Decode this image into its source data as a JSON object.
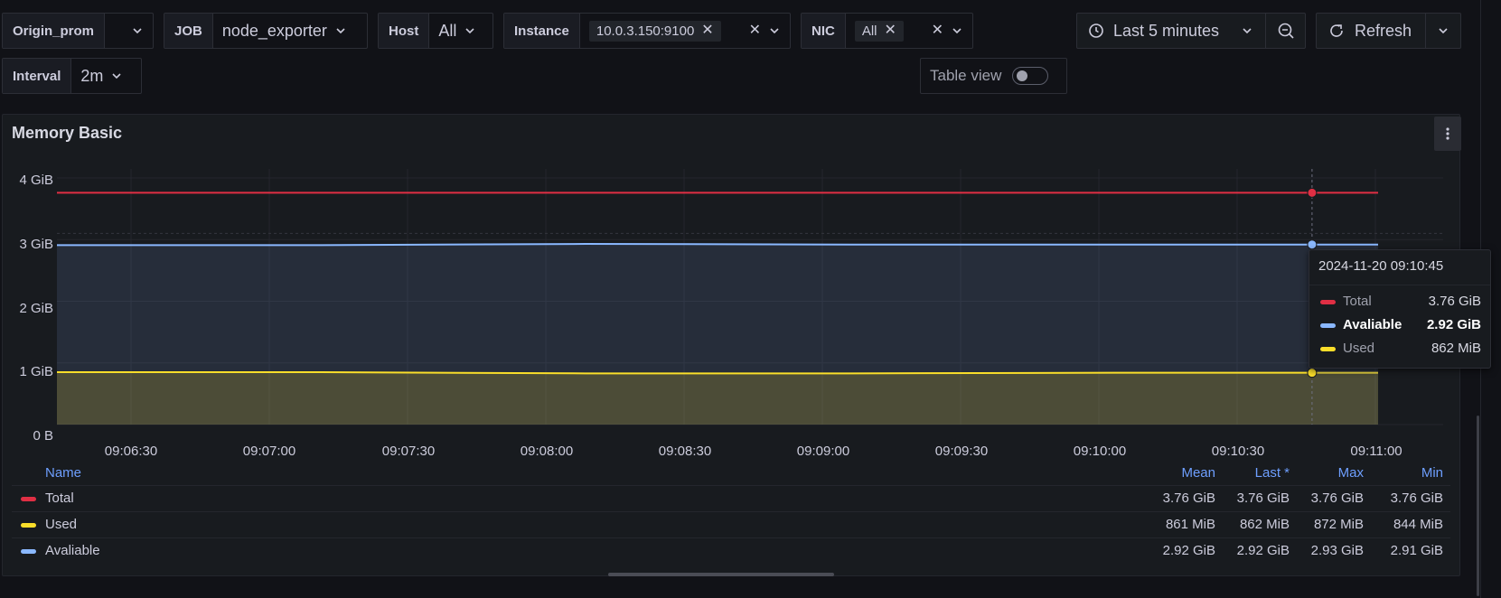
{
  "variables": {
    "origin": {
      "label": "Origin_prom",
      "value": ""
    },
    "job": {
      "label": "JOB",
      "value": "node_exporter"
    },
    "host": {
      "label": "Host",
      "value": "All"
    },
    "instance": {
      "label": "Instance",
      "chip": "10.0.3.150:9100"
    },
    "nic": {
      "label": "NIC",
      "chip": "All"
    },
    "interval": {
      "label": "Interval",
      "value": "2m"
    }
  },
  "time_picker": {
    "label": "Last 5 minutes"
  },
  "refresh": {
    "label": "Refresh"
  },
  "table_view": {
    "label": "Table view",
    "enabled": false
  },
  "panel": {
    "title": "Memory Basic",
    "legend": {
      "headers": {
        "name": "Name",
        "mean": "Mean",
        "last": "Last *",
        "max": "Max",
        "min": "Min"
      },
      "rows": [
        {
          "name": "Total",
          "color": "#e02f44",
          "mean": "3.76 GiB",
          "last": "3.76 GiB",
          "max": "3.76 GiB",
          "min": "3.76 GiB"
        },
        {
          "name": "Used",
          "color": "#fade2a",
          "mean": "861 MiB",
          "last": "862 MiB",
          "max": "872 MiB",
          "min": "844 MiB"
        },
        {
          "name": "Avaliable",
          "color": "#8ab8ff",
          "mean": "2.92 GiB",
          "last": "2.92 GiB",
          "max": "2.93 GiB",
          "min": "2.91 GiB"
        }
      ]
    },
    "tooltip": {
      "time": "2024-11-20 09:10:45",
      "items": [
        {
          "name": "Total",
          "value": "3.76 GiB",
          "color": "#e02f44"
        },
        {
          "name": "Avaliable",
          "value": "2.92 GiB",
          "color": "#8ab8ff"
        },
        {
          "name": "Used",
          "value": "862 MiB",
          "color": "#fade2a"
        }
      ]
    }
  },
  "chart_data": {
    "type": "line",
    "ylim": [
      0,
      4
    ],
    "y_unit_labels": [
      "0 B",
      "1 GiB",
      "2 GiB",
      "3 GiB",
      "4 GiB"
    ],
    "x_tick_labels": [
      "09:06:30",
      "09:07:00",
      "09:07:30",
      "09:08:00",
      "09:08:30",
      "09:09:00",
      "09:09:30",
      "09:10:00",
      "09:10:30",
      "09:11:00"
    ],
    "x_seconds_range": [
      0,
      300
    ],
    "x": [
      0,
      60,
      120,
      180,
      240,
      285
    ],
    "series": [
      {
        "name": "Total",
        "color": "#e02f44",
        "fill": false,
        "values": [
          3.76,
          3.76,
          3.76,
          3.76,
          3.76,
          3.76
        ]
      },
      {
        "name": "Avaliable",
        "color": "#8ab8ff",
        "fill": true,
        "values": [
          2.91,
          2.91,
          2.93,
          2.92,
          2.92,
          2.92
        ]
      },
      {
        "name": "Used",
        "color": "#fade2a",
        "fill": true,
        "values": [
          0.85,
          0.85,
          0.83,
          0.83,
          0.84,
          0.84
        ]
      }
    ],
    "hover_x": 285,
    "grid": true
  }
}
